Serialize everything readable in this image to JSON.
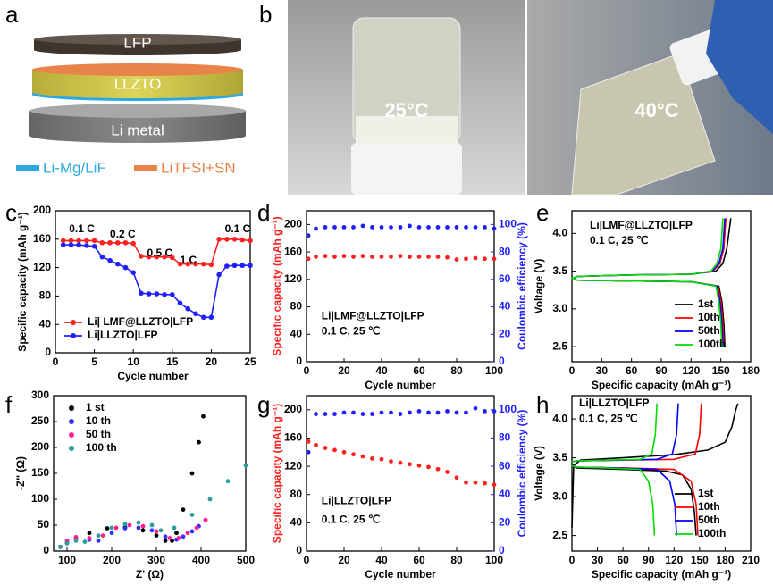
{
  "schematic": {
    "panel": "a",
    "layers": [
      "LFP",
      "LLZTO",
      "Li metal"
    ],
    "legend": [
      "Li-Mg/LiF",
      "LiTFSI+SN"
    ]
  },
  "photos": {
    "panel": "b",
    "labels": [
      "25°C",
      "40°C"
    ]
  },
  "chart_data": [
    {
      "type": "line",
      "panel": "c",
      "markers": true,
      "xlabel": "Cycle number",
      "ylabel": "Specific capacity (mAh g⁻¹)",
      "xlim": [
        0,
        25
      ],
      "xticks": [
        0,
        5,
        10,
        15,
        20,
        25
      ],
      "ylim": [
        0,
        200
      ],
      "yticks": [
        0,
        40,
        80,
        120,
        160,
        200
      ],
      "legend": "lower left",
      "annotations": [
        "0.1 C",
        "0.2 C",
        "0.5 C",
        "1 C",
        "0.1 C"
      ],
      "series": [
        {
          "name": "Li| LMF@LLZTO|LFP",
          "color": "#ff2020",
          "x": [
            1,
            2,
            3,
            4,
            5,
            6,
            7,
            8,
            9,
            10,
            11,
            12,
            13,
            14,
            15,
            16,
            17,
            18,
            19,
            20,
            21,
            22,
            23,
            24,
            25
          ],
          "values": [
            158,
            158,
            158,
            158,
            158,
            155,
            155,
            155,
            155,
            154,
            136,
            135,
            135,
            135,
            134,
            125,
            125,
            125,
            125,
            124,
            160,
            160,
            160,
            159,
            158
          ]
        },
        {
          "name": "Li|LLZTO|LFP",
          "color": "#2020ff",
          "x": [
            1,
            2,
            3,
            4,
            5,
            6,
            7,
            8,
            9,
            10,
            11,
            12,
            13,
            14,
            15,
            16,
            17,
            18,
            19,
            20,
            21,
            22,
            23,
            24,
            25
          ],
          "values": [
            152,
            152,
            152,
            151,
            150,
            135,
            130,
            125,
            120,
            113,
            84,
            83,
            83,
            82,
            82,
            70,
            62,
            55,
            50,
            50,
            110,
            122,
            123,
            123,
            123
          ]
        }
      ]
    },
    {
      "type": "scatter",
      "panel": "d",
      "xlabel": "Cycle number",
      "ylabel": "Specific capacity (mAh g⁻¹)",
      "y2label": "Coulombic efficiency (%)",
      "xlim": [
        0,
        100
      ],
      "xticks": [
        0,
        20,
        40,
        60,
        80,
        100
      ],
      "ylim": [
        0,
        220
      ],
      "yticks": [
        0,
        40,
        80,
        120,
        160,
        200
      ],
      "y2lim": [
        0,
        110
      ],
      "y2ticks": [
        0,
        20,
        40,
        60,
        80,
        100
      ],
      "annotations": [
        "Li|LMF@LLZTO|LFP",
        "0.1 C, 25 ℃"
      ],
      "series": [
        {
          "color": "#ff2020",
          "x": [
            1,
            5,
            10,
            15,
            20,
            25,
            30,
            35,
            40,
            45,
            50,
            55,
            60,
            65,
            70,
            75,
            80,
            85,
            90,
            95,
            100
          ],
          "values": [
            150,
            153,
            154,
            153,
            154,
            153,
            154,
            153,
            153,
            153,
            154,
            153,
            153,
            153,
            153,
            152,
            149,
            150,
            151,
            150,
            150
          ]
        },
        {
          "color": "#2020ff",
          "axis": "y2",
          "x": [
            1,
            5,
            10,
            15,
            20,
            25,
            30,
            35,
            40,
            45,
            50,
            55,
            60,
            65,
            70,
            75,
            80,
            85,
            90,
            95,
            100
          ],
          "values": [
            92,
            97,
            98,
            98,
            98,
            98,
            99,
            98,
            98,
            98,
            98,
            99,
            98,
            98,
            98,
            98,
            98,
            98,
            98,
            98,
            97
          ]
        }
      ]
    },
    {
      "type": "line",
      "panel": "e",
      "xlabel": "Specific capacity (mAh g⁻¹)",
      "ylabel": "Voltage (V)",
      "xlim": [
        0,
        180
      ],
      "xticks": [
        0,
        30,
        60,
        90,
        120,
        150,
        180
      ],
      "ylim": [
        2.3,
        4.3
      ],
      "yticks": [
        2.5,
        {
          "value": 3.0,
          "label": "3.0"
        },
        3.5,
        {
          "value": 4.0,
          "label": "4.0"
        }
      ],
      "legend": "lower right",
      "annotations": [
        "Li|LMF@LLZTO|LFP",
        "0.1 C, 25 ℃"
      ],
      "series": [
        {
          "name": "1st",
          "color": "#000000",
          "x": [
            0,
            5,
            60,
            120,
            145,
            152,
            156,
            160,
            null,
            0,
            5,
            60,
            120,
            148,
            151,
            153,
            154
          ],
          "values": [
            3.4,
            3.43,
            3.45,
            3.46,
            3.5,
            3.6,
            3.8,
            4.2,
            null,
            3.42,
            3.38,
            3.37,
            3.36,
            3.3,
            3.1,
            2.8,
            2.5
          ]
        },
        {
          "name": "10th",
          "color": "#ff0000",
          "x": [
            0,
            5,
            60,
            120,
            142,
            149,
            153,
            155,
            null,
            0,
            5,
            60,
            120,
            147,
            150,
            152,
            153
          ],
          "values": [
            3.4,
            3.43,
            3.45,
            3.46,
            3.5,
            3.6,
            3.8,
            4.2,
            null,
            3.42,
            3.38,
            3.37,
            3.36,
            3.3,
            3.1,
            2.8,
            2.5
          ]
        },
        {
          "name": "50th",
          "color": "#0000ff",
          "x": [
            0,
            5,
            60,
            120,
            141,
            148,
            152,
            154,
            null,
            0,
            5,
            60,
            120,
            146,
            149,
            151,
            152
          ],
          "values": [
            3.4,
            3.43,
            3.45,
            3.46,
            3.5,
            3.6,
            3.8,
            4.2,
            null,
            3.42,
            3.38,
            3.37,
            3.36,
            3.3,
            3.1,
            2.8,
            2.5
          ]
        },
        {
          "name": "100th",
          "color": "#00dd00",
          "x": [
            0,
            5,
            60,
            120,
            140,
            146,
            150,
            152,
            null,
            0,
            5,
            60,
            120,
            145,
            148,
            150,
            151
          ],
          "values": [
            3.4,
            3.43,
            3.45,
            3.46,
            3.5,
            3.6,
            3.8,
            4.2,
            null,
            3.42,
            3.38,
            3.37,
            3.36,
            3.3,
            3.1,
            2.8,
            2.5
          ]
        }
      ]
    },
    {
      "type": "scatter",
      "panel": "f",
      "xlabel": "Z' (Ω)",
      "ylabel": "-Z'' (Ω)",
      "xlim": [
        70,
        500
      ],
      "xticks": [
        100,
        200,
        300,
        400,
        500
      ],
      "ylim": [
        0,
        300
      ],
      "yticks": [
        0,
        50,
        100,
        150,
        200,
        250,
        300
      ],
      "legend": "upper left",
      "series": [
        {
          "name": "1 st",
          "color": "#000000",
          "x": [
            85,
            100,
            120,
            150,
            190,
            230,
            270,
            300,
            320,
            335,
            345,
            360,
            380,
            395,
            405
          ],
          "values": [
            8,
            15,
            25,
            35,
            44,
            46,
            40,
            30,
            20,
            20,
            35,
            80,
            150,
            210,
            260
          ]
        },
        {
          "name": "10 th",
          "color": "#3030ff",
          "x": [
            85,
            100,
            120,
            150,
            170,
            200,
            230,
            260,
            290,
            320,
            345,
            360,
            380,
            395,
            410
          ],
          "values": [
            8,
            18,
            24,
            22,
            20,
            35,
            44,
            45,
            40,
            28,
            22,
            28,
            38,
            48,
            60
          ]
        },
        {
          "name": "50 th",
          "color": "#ff2090",
          "x": [
            85,
            100,
            120,
            150,
            180,
            210,
            240,
            270,
            300,
            330,
            350,
            370,
            390,
            410
          ],
          "values": [
            8,
            20,
            27,
            25,
            30,
            45,
            50,
            48,
            38,
            25,
            25,
            35,
            45,
            60
          ]
        },
        {
          "name": "100 th",
          "color": "#2a9d9d",
          "x": [
            85,
            100,
            120,
            140,
            170,
            200,
            230,
            260,
            290,
            310,
            340,
            380,
            420,
            460,
            500
          ],
          "values": [
            8,
            15,
            20,
            18,
            30,
            45,
            52,
            55,
            50,
            40,
            45,
            70,
            100,
            135,
            165
          ]
        }
      ]
    },
    {
      "type": "scatter",
      "panel": "g",
      "xlabel": "Cycle number",
      "ylabel": "Specific capacity (mAh g⁻¹)",
      "y2label": "Coulombic efficiency (%)",
      "xlim": [
        0,
        100
      ],
      "xticks": [
        0,
        20,
        40,
        60,
        80,
        100
      ],
      "ylim": [
        0,
        220
      ],
      "yticks": [
        0,
        40,
        80,
        120,
        160,
        200
      ],
      "y2lim": [
        0,
        110
      ],
      "y2ticks": [
        0,
        20,
        40,
        60,
        80,
        100
      ],
      "annotations": [
        "Li|LLZTO|LFP",
        "0.1 C, 25 ℃"
      ],
      "series": [
        {
          "color": "#ff2020",
          "x": [
            1,
            5,
            10,
            15,
            20,
            25,
            30,
            35,
            40,
            45,
            50,
            55,
            60,
            65,
            70,
            75,
            80,
            85,
            90,
            95,
            100
          ],
          "values": [
            155,
            150,
            146,
            143,
            140,
            137,
            134,
            131,
            130,
            127,
            125,
            123,
            121,
            119,
            116,
            112,
            104,
            97,
            97,
            96,
            94
          ]
        },
        {
          "color": "#2020ff",
          "axis": "y2",
          "x": [
            1,
            5,
            10,
            15,
            20,
            25,
            30,
            35,
            40,
            45,
            50,
            55,
            60,
            65,
            70,
            75,
            80,
            85,
            90,
            95,
            100
          ],
          "values": [
            70,
            97,
            97,
            97,
            98,
            98,
            97,
            97,
            98,
            98,
            97,
            98,
            99,
            98,
            98,
            99,
            98,
            98,
            101,
            99,
            99
          ]
        }
      ]
    },
    {
      "type": "line",
      "panel": "h",
      "xlabel": "Specific capacity (mAh g⁻¹)",
      "ylabel": "Voltage (V)",
      "xlim": [
        0,
        210
      ],
      "xticks": [
        0,
        30,
        60,
        90,
        120,
        150,
        180,
        210
      ],
      "ylim": [
        2.3,
        4.3
      ],
      "yticks": [
        2.5,
        {
          "value": 3.0,
          "label": "3.0"
        },
        3.5,
        {
          "value": 4.0,
          "label": "4.0"
        }
      ],
      "legend": "lower right",
      "annotations": [
        "Li|LLZTO|LFP",
        "0.1 C, 25 ℃"
      ],
      "series": [
        {
          "name": "1st",
          "color": "#000000",
          "x": [
            0,
            2,
            10,
            60,
            120,
            160,
            180,
            188,
            192,
            195,
            null,
            0,
            5,
            60,
            110,
            130,
            140,
            144,
            146
          ],
          "values": [
            2.6,
            3.4,
            3.47,
            3.5,
            3.54,
            3.6,
            3.7,
            3.9,
            4.1,
            4.2,
            null,
            3.42,
            3.37,
            3.35,
            3.33,
            3.28,
            3.1,
            2.8,
            2.5
          ]
        },
        {
          "name": "10th",
          "color": "#ff0000",
          "x": [
            0,
            5,
            60,
            120,
            145,
            150,
            152,
            null,
            0,
            5,
            60,
            120,
            140,
            146,
            148
          ],
          "values": [
            3.45,
            3.46,
            3.47,
            3.48,
            3.55,
            3.8,
            4.2,
            null,
            3.4,
            3.38,
            3.37,
            3.35,
            3.2,
            2.9,
            2.5
          ]
        },
        {
          "name": "50th",
          "color": "#0000ff",
          "x": [
            0,
            5,
            50,
            100,
            118,
            123,
            125,
            null,
            0,
            5,
            50,
            100,
            115,
            121,
            123
          ],
          "values": [
            3.45,
            3.46,
            3.47,
            3.48,
            3.55,
            3.8,
            4.2,
            null,
            3.4,
            3.38,
            3.37,
            3.35,
            3.2,
            2.9,
            2.5
          ]
        },
        {
          "name": "100th",
          "color": "#00dd00",
          "x": [
            0,
            5,
            40,
            80,
            94,
            98,
            100,
            null,
            0,
            5,
            40,
            80,
            90,
            95,
            97
          ],
          "values": [
            3.45,
            3.46,
            3.47,
            3.48,
            3.55,
            3.8,
            4.2,
            null,
            3.4,
            3.38,
            3.37,
            3.35,
            3.2,
            2.9,
            2.5
          ]
        }
      ]
    }
  ]
}
